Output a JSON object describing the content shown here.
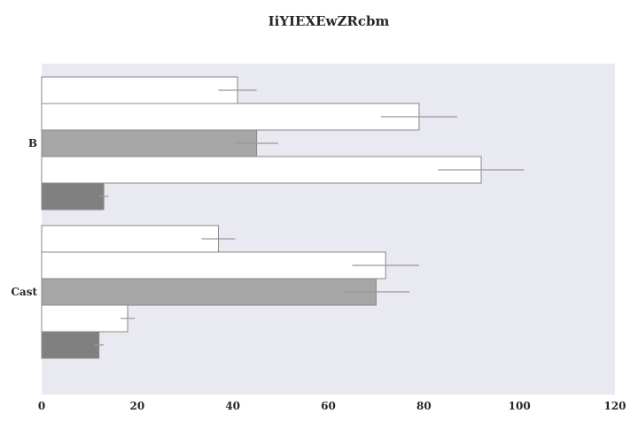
{
  "chart_data": {
    "type": "bar",
    "orientation": "horizontal",
    "title": "IiYIEXEwZRcbm",
    "xlabel": "",
    "ylabel": "",
    "categories": [
      "B",
      "Cast"
    ],
    "series": [
      {
        "values": [
          41,
          37
        ],
        "errors": [
          4,
          3.5
        ],
        "color": "#ffffff"
      },
      {
        "values": [
          79,
          72
        ],
        "errors": [
          8,
          7
        ],
        "color": "#ffffff"
      },
      {
        "values": [
          45,
          70
        ],
        "errors": [
          4.5,
          7
        ],
        "color": "#a6a6a6"
      },
      {
        "values": [
          92,
          18
        ],
        "errors": [
          9,
          1.5
        ],
        "color": "#ffffff"
      },
      {
        "values": [
          13,
          12
        ],
        "errors": [
          1,
          1
        ],
        "color": "#808080"
      }
    ],
    "xlim": [
      0,
      120
    ],
    "xticks": [
      0,
      20,
      40,
      60,
      80,
      100,
      120
    ],
    "grid": false,
    "background": "#e9e9f1",
    "edge_color": "#888888",
    "error_color": "#999999"
  }
}
